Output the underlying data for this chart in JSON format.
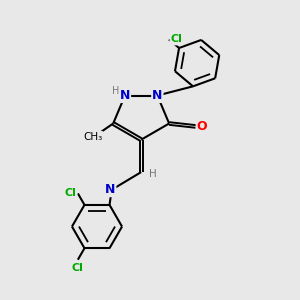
{
  "background_color": "#e8e8e8",
  "bond_color": "#000000",
  "atom_colors": {
    "N": "#0000cc",
    "O": "#ff0000",
    "Cl": "#00aa00",
    "C": "#000000",
    "H": "#777777"
  },
  "figsize": [
    3.0,
    3.0
  ],
  "dpi": 100
}
